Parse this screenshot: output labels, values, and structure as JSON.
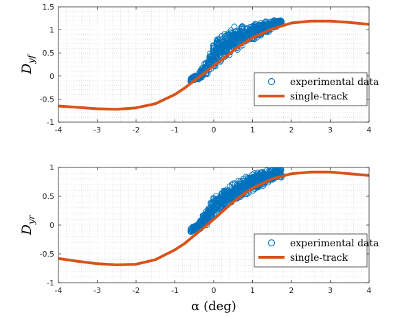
{
  "chart_data": [
    {
      "type": "scatter",
      "ylabel_main": "D",
      "ylabel_sub": "yf",
      "xlabel": "",
      "xlim": [
        -4,
        4
      ],
      "ylim": [
        -1,
        1.5
      ],
      "xticks": [
        "-4",
        "-3",
        "-2",
        "-1",
        "0",
        "1",
        "2",
        "3",
        "4"
      ],
      "yticks": [
        "-1",
        "-0.5",
        "0",
        "0.5",
        "1",
        "1.5"
      ],
      "grid": "minor dotted",
      "legend": "right",
      "series": [
        {
          "name": "experimental data",
          "type": "scatter",
          "marker": "open-circle",
          "color": "#0072BD",
          "band": {
            "x": [
              -0.6,
              -0.4,
              -0.2,
              0.0,
              0.2,
              0.4,
              0.6,
              0.8,
              1.0,
              1.2,
              1.4,
              1.6,
              1.75
            ],
            "low": [
              -0.12,
              -0.08,
              0.0,
              0.15,
              0.3,
              0.42,
              0.55,
              0.65,
              0.75,
              0.85,
              0.95,
              1.05,
              1.12
            ],
            "high": [
              -0.02,
              0.05,
              0.35,
              0.75,
              0.98,
              1.05,
              1.1,
              1.12,
              1.15,
              1.18,
              1.2,
              1.22,
              1.22
            ]
          }
        },
        {
          "name": "single-track",
          "type": "line",
          "color": "#D95319",
          "x": [
            -4,
            -3.5,
            -3,
            -2.5,
            -2,
            -1.5,
            -1,
            -0.75,
            -0.5,
            -0.25,
            0,
            0.25,
            0.5,
            0.75,
            1,
            1.5,
            2,
            2.5,
            3,
            3.5,
            4
          ],
          "y": [
            -0.65,
            -0.68,
            -0.71,
            -0.72,
            -0.69,
            -0.6,
            -0.4,
            -0.26,
            -0.1,
            0.06,
            0.22,
            0.38,
            0.55,
            0.7,
            0.83,
            1.02,
            1.15,
            1.19,
            1.19,
            1.16,
            1.12
          ]
        }
      ]
    },
    {
      "type": "scatter",
      "ylabel_main": "D",
      "ylabel_sub": "yr",
      "xlabel": "α (deg)",
      "xlim": [
        -4,
        4
      ],
      "ylim": [
        -1,
        1
      ],
      "xticks": [
        "-4",
        "-3",
        "-2",
        "-1",
        "0",
        "1",
        "2",
        "3",
        "4"
      ],
      "yticks": [
        "-1",
        "-0.5",
        "0",
        "0.5",
        "1"
      ],
      "grid": "minor dotted",
      "legend": "right",
      "series": [
        {
          "name": "experimental data",
          "type": "scatter",
          "marker": "open-circle",
          "color": "#0072BD",
          "band": {
            "x": [
              -0.6,
              -0.4,
              -0.2,
              0.0,
              0.2,
              0.4,
              0.6,
              0.8,
              1.0,
              1.2,
              1.4,
              1.6,
              1.75
            ],
            "low": [
              -0.14,
              -0.1,
              -0.02,
              0.1,
              0.22,
              0.33,
              0.42,
              0.5,
              0.58,
              0.65,
              0.72,
              0.78,
              0.82
            ],
            "high": [
              -0.05,
              0.05,
              0.25,
              0.5,
              0.62,
              0.7,
              0.78,
              0.84,
              0.9,
              0.94,
              0.97,
              1.0,
              1.0
            ]
          }
        },
        {
          "name": "single-track",
          "type": "line",
          "color": "#D95319",
          "x": [
            -4,
            -3.5,
            -3,
            -2.5,
            -2,
            -1.5,
            -1,
            -0.75,
            -0.5,
            -0.25,
            0,
            0.25,
            0.5,
            0.75,
            1,
            1.5,
            2,
            2.5,
            3,
            3.5,
            4
          ],
          "y": [
            -0.58,
            -0.63,
            -0.67,
            -0.69,
            -0.68,
            -0.6,
            -0.43,
            -0.32,
            -0.18,
            -0.04,
            0.1,
            0.25,
            0.4,
            0.53,
            0.64,
            0.8,
            0.89,
            0.92,
            0.92,
            0.89,
            0.86
          ]
        }
      ]
    }
  ]
}
